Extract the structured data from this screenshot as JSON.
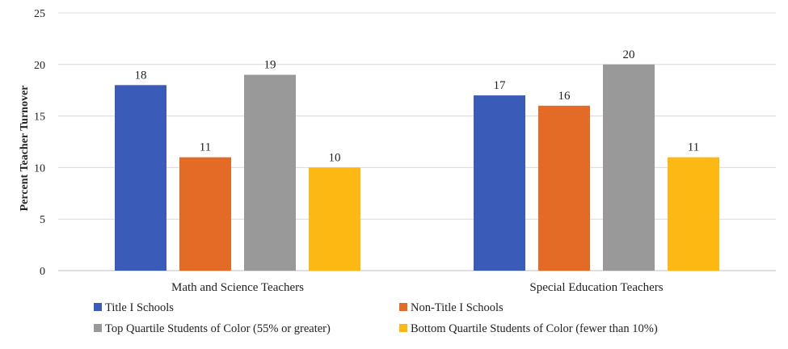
{
  "chart_data": {
    "type": "bar",
    "title": "",
    "xlabel": "",
    "ylabel": "Percent Teacher Turnover",
    "ylim": [
      0,
      25
    ],
    "yticks": [
      0,
      5,
      10,
      15,
      20,
      25
    ],
    "grid": true,
    "legend_position": "bottom",
    "categories": [
      "Math and Science Teachers",
      "Special Education Teachers"
    ],
    "series": [
      {
        "name": "Title I Schools",
        "color": "#3a5bb8",
        "values": [
          18,
          17
        ]
      },
      {
        "name": "Non-Title I Schools",
        "color": "#e36b25",
        "values": [
          11,
          16
        ]
      },
      {
        "name": "Top Quartile Students of Color (55% or greater)",
        "color": "#999999",
        "values": [
          19,
          20
        ]
      },
      {
        "name": "Bottom Quartile Students of Color (fewer than 10%)",
        "color": "#fdb813",
        "values": [
          10,
          11
        ]
      }
    ]
  }
}
